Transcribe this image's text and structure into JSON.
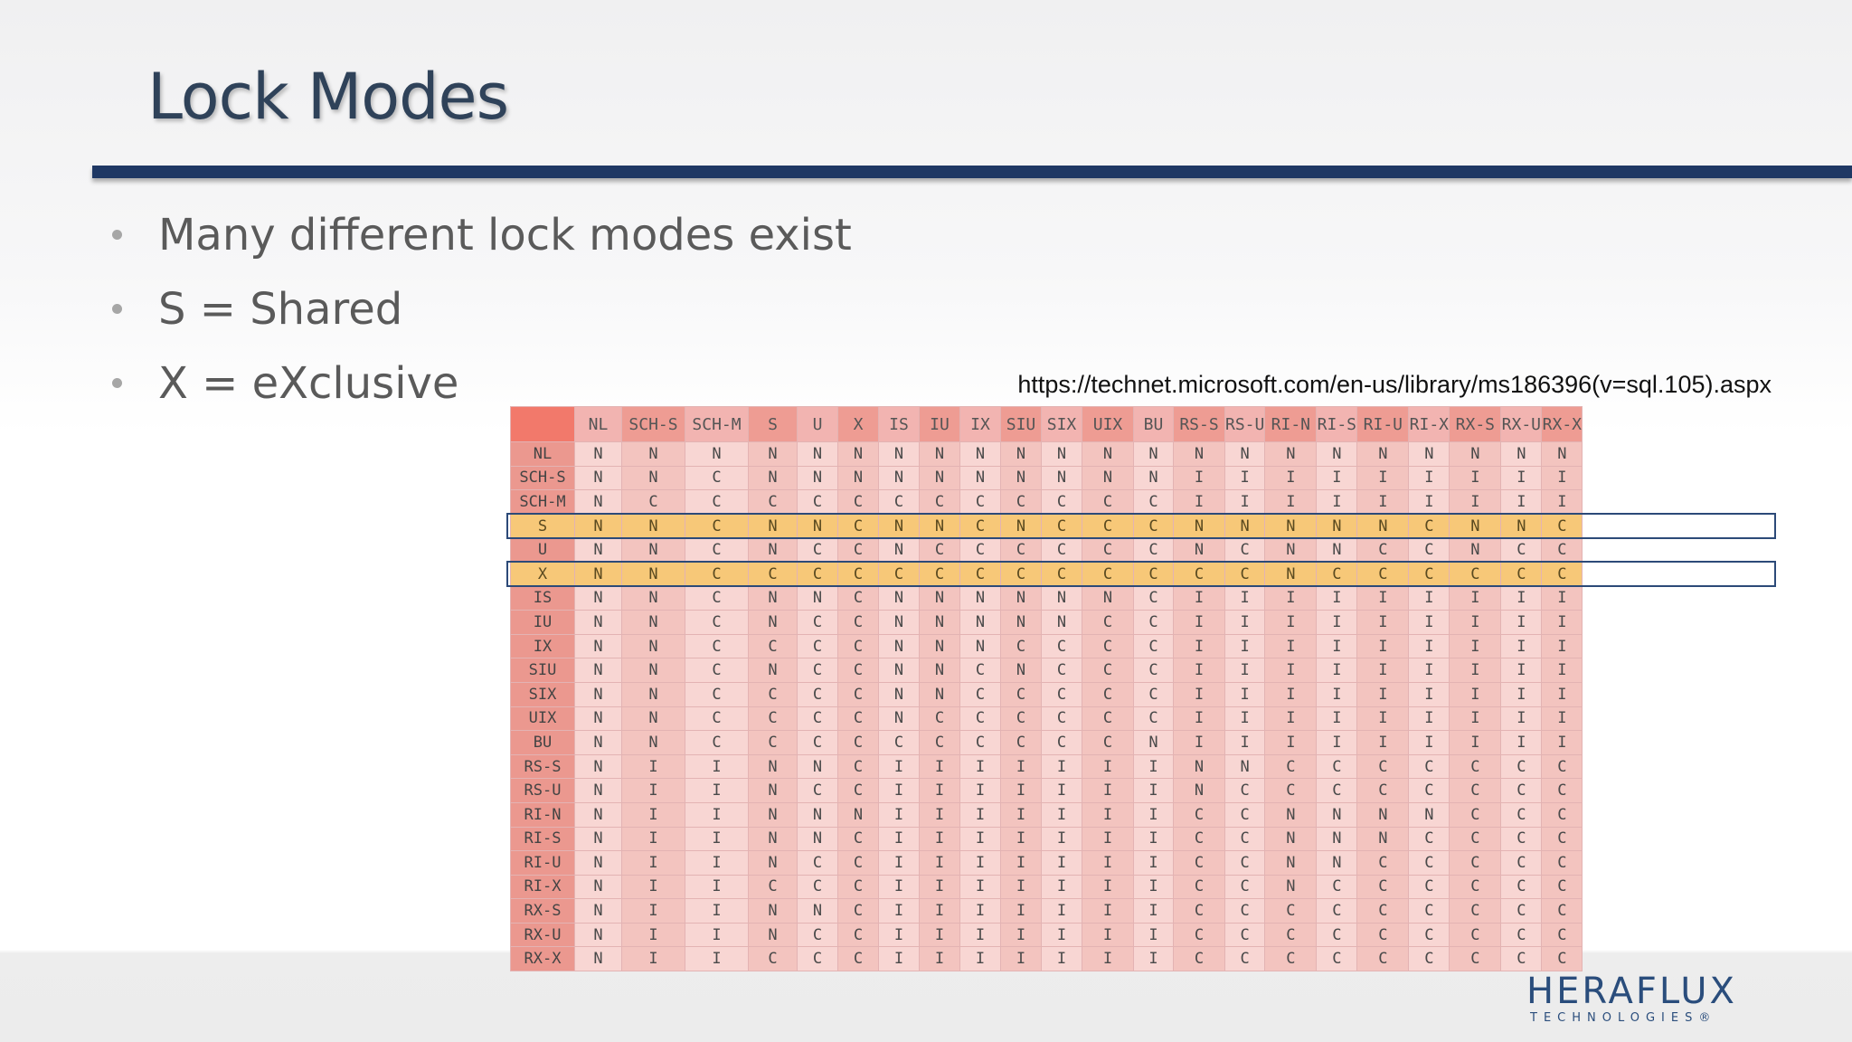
{
  "slide": {
    "title": "Lock Modes",
    "bullets": [
      "Many different lock modes exist",
      "S = Shared",
      "X = eXclusive"
    ],
    "source_url": "https://technet.microsoft.com/en-us/library/ms186396(v=sql.105).aspx"
  },
  "matrix": {
    "columns": [
      "NL",
      "SCH-S",
      "SCH-M",
      "S",
      "U",
      "X",
      "IS",
      "IU",
      "IX",
      "SIU",
      "SIX",
      "UIX",
      "BU",
      "RS-S",
      "RS-U",
      "RI-N",
      "RI-S",
      "RI-U",
      "RI-X",
      "RX-S",
      "RX-U",
      "RX-X"
    ],
    "highlighted_rows": [
      "S",
      "X"
    ],
    "rows": [
      {
        "mode": "NL",
        "cells": [
          "N",
          "N",
          "N",
          "N",
          "N",
          "N",
          "N",
          "N",
          "N",
          "N",
          "N",
          "N",
          "N",
          "N",
          "N",
          "N",
          "N",
          "N",
          "N",
          "N",
          "N",
          "N"
        ]
      },
      {
        "mode": "SCH-S",
        "cells": [
          "N",
          "N",
          "C",
          "N",
          "N",
          "N",
          "N",
          "N",
          "N",
          "N",
          "N",
          "N",
          "N",
          "I",
          "I",
          "I",
          "I",
          "I",
          "I",
          "I",
          "I",
          "I"
        ]
      },
      {
        "mode": "SCH-M",
        "cells": [
          "N",
          "C",
          "C",
          "C",
          "C",
          "C",
          "C",
          "C",
          "C",
          "C",
          "C",
          "C",
          "C",
          "I",
          "I",
          "I",
          "I",
          "I",
          "I",
          "I",
          "I",
          "I"
        ]
      },
      {
        "mode": "S",
        "cells": [
          "N",
          "N",
          "C",
          "N",
          "N",
          "C",
          "N",
          "N",
          "C",
          "N",
          "C",
          "C",
          "C",
          "N",
          "N",
          "N",
          "N",
          "N",
          "C",
          "N",
          "N",
          "C"
        ]
      },
      {
        "mode": "U",
        "cells": [
          "N",
          "N",
          "C",
          "N",
          "C",
          "C",
          "N",
          "C",
          "C",
          "C",
          "C",
          "C",
          "C",
          "N",
          "C",
          "N",
          "N",
          "C",
          "C",
          "N",
          "C",
          "C"
        ]
      },
      {
        "mode": "X",
        "cells": [
          "N",
          "N",
          "C",
          "C",
          "C",
          "C",
          "C",
          "C",
          "C",
          "C",
          "C",
          "C",
          "C",
          "C",
          "C",
          "N",
          "C",
          "C",
          "C",
          "C",
          "C",
          "C"
        ]
      },
      {
        "mode": "IS",
        "cells": [
          "N",
          "N",
          "C",
          "N",
          "N",
          "C",
          "N",
          "N",
          "N",
          "N",
          "N",
          "N",
          "C",
          "I",
          "I",
          "I",
          "I",
          "I",
          "I",
          "I",
          "I",
          "I"
        ]
      },
      {
        "mode": "IU",
        "cells": [
          "N",
          "N",
          "C",
          "N",
          "C",
          "C",
          "N",
          "N",
          "N",
          "N",
          "N",
          "C",
          "C",
          "I",
          "I",
          "I",
          "I",
          "I",
          "I",
          "I",
          "I",
          "I"
        ]
      },
      {
        "mode": "IX",
        "cells": [
          "N",
          "N",
          "C",
          "C",
          "C",
          "C",
          "N",
          "N",
          "N",
          "C",
          "C",
          "C",
          "C",
          "I",
          "I",
          "I",
          "I",
          "I",
          "I",
          "I",
          "I",
          "I"
        ]
      },
      {
        "mode": "SIU",
        "cells": [
          "N",
          "N",
          "C",
          "N",
          "C",
          "C",
          "N",
          "N",
          "C",
          "N",
          "C",
          "C",
          "C",
          "I",
          "I",
          "I",
          "I",
          "I",
          "I",
          "I",
          "I",
          "I"
        ]
      },
      {
        "mode": "SIX",
        "cells": [
          "N",
          "N",
          "C",
          "C",
          "C",
          "C",
          "N",
          "N",
          "C",
          "C",
          "C",
          "C",
          "C",
          "I",
          "I",
          "I",
          "I",
          "I",
          "I",
          "I",
          "I",
          "I"
        ]
      },
      {
        "mode": "UIX",
        "cells": [
          "N",
          "N",
          "C",
          "C",
          "C",
          "C",
          "N",
          "C",
          "C",
          "C",
          "C",
          "C",
          "C",
          "I",
          "I",
          "I",
          "I",
          "I",
          "I",
          "I",
          "I",
          "I"
        ]
      },
      {
        "mode": "BU",
        "cells": [
          "N",
          "N",
          "C",
          "C",
          "C",
          "C",
          "C",
          "C",
          "C",
          "C",
          "C",
          "C",
          "N",
          "I",
          "I",
          "I",
          "I",
          "I",
          "I",
          "I",
          "I",
          "I"
        ]
      },
      {
        "mode": "RS-S",
        "cells": [
          "N",
          "I",
          "I",
          "N",
          "N",
          "C",
          "I",
          "I",
          "I",
          "I",
          "I",
          "I",
          "I",
          "N",
          "N",
          "C",
          "C",
          "C",
          "C",
          "C",
          "C",
          "C"
        ]
      },
      {
        "mode": "RS-U",
        "cells": [
          "N",
          "I",
          "I",
          "N",
          "C",
          "C",
          "I",
          "I",
          "I",
          "I",
          "I",
          "I",
          "I",
          "N",
          "C",
          "C",
          "C",
          "C",
          "C",
          "C",
          "C",
          "C"
        ]
      },
      {
        "mode": "RI-N",
        "cells": [
          "N",
          "I",
          "I",
          "N",
          "N",
          "N",
          "I",
          "I",
          "I",
          "I",
          "I",
          "I",
          "I",
          "C",
          "C",
          "N",
          "N",
          "N",
          "N",
          "C",
          "C",
          "C"
        ]
      },
      {
        "mode": "RI-S",
        "cells": [
          "N",
          "I",
          "I",
          "N",
          "N",
          "C",
          "I",
          "I",
          "I",
          "I",
          "I",
          "I",
          "I",
          "C",
          "C",
          "N",
          "N",
          "N",
          "C",
          "C",
          "C",
          "C"
        ]
      },
      {
        "mode": "RI-U",
        "cells": [
          "N",
          "I",
          "I",
          "N",
          "C",
          "C",
          "I",
          "I",
          "I",
          "I",
          "I",
          "I",
          "I",
          "C",
          "C",
          "N",
          "N",
          "C",
          "C",
          "C",
          "C",
          "C"
        ]
      },
      {
        "mode": "RI-X",
        "cells": [
          "N",
          "I",
          "I",
          "C",
          "C",
          "C",
          "I",
          "I",
          "I",
          "I",
          "I",
          "I",
          "I",
          "C",
          "C",
          "N",
          "C",
          "C",
          "C",
          "C",
          "C",
          "C"
        ]
      },
      {
        "mode": "RX-S",
        "cells": [
          "N",
          "I",
          "I",
          "N",
          "N",
          "C",
          "I",
          "I",
          "I",
          "I",
          "I",
          "I",
          "I",
          "C",
          "C",
          "C",
          "C",
          "C",
          "C",
          "C",
          "C",
          "C"
        ]
      },
      {
        "mode": "RX-U",
        "cells": [
          "N",
          "I",
          "I",
          "N",
          "C",
          "C",
          "I",
          "I",
          "I",
          "I",
          "I",
          "I",
          "I",
          "C",
          "C",
          "C",
          "C",
          "C",
          "C",
          "C",
          "C",
          "C"
        ]
      },
      {
        "mode": "RX-X",
        "cells": [
          "N",
          "I",
          "I",
          "C",
          "C",
          "C",
          "I",
          "I",
          "I",
          "I",
          "I",
          "I",
          "I",
          "C",
          "C",
          "C",
          "C",
          "C",
          "C",
          "C",
          "C",
          "C"
        ]
      }
    ]
  },
  "logo": {
    "main": "HERAFLUX",
    "sub": "TECHNOLOGIES®"
  },
  "colors": {
    "title_bar": "#1f3864",
    "highlight_row": "#f7c878",
    "highlight_border": "#2c4a78",
    "brand": "#2a4d7c"
  }
}
